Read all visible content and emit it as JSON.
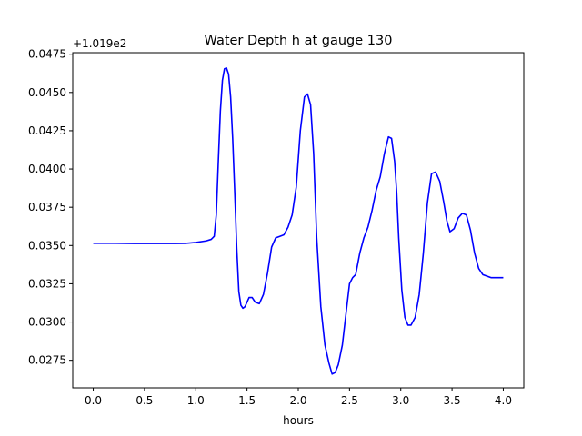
{
  "chart_data": {
    "type": "line",
    "title": "Water Depth h at gauge 130",
    "xlabel": "hours",
    "ylabel": "",
    "y_offset_label": "+1.019e2",
    "xlim": [
      -0.2,
      4.2
    ],
    "ylim": [
      0.0257,
      0.0476
    ],
    "x_ticks": [
      0.0,
      0.5,
      1.0,
      1.5,
      2.0,
      2.5,
      3.0,
      3.5,
      4.0
    ],
    "x_tick_labels": [
      "0.0",
      "0.5",
      "1.0",
      "1.5",
      "2.0",
      "2.5",
      "3.0",
      "3.5",
      "4.0"
    ],
    "y_ticks": [
      0.0275,
      0.03,
      0.0325,
      0.035,
      0.0375,
      0.04,
      0.0425,
      0.045,
      0.0475
    ],
    "y_tick_labels": [
      "0.0275",
      "0.0300",
      "0.0325",
      "0.0350",
      "0.0375",
      "0.0400",
      "0.0425",
      "0.0450",
      "0.0475"
    ],
    "grid": false,
    "line_color": "#0000ff",
    "series": [
      {
        "x": [
          0.0,
          0.2,
          0.4,
          0.6,
          0.8,
          0.9,
          1.0,
          1.1,
          1.15,
          1.18,
          1.2,
          1.22,
          1.24,
          1.26,
          1.28,
          1.3,
          1.32,
          1.34,
          1.36,
          1.38,
          1.4,
          1.42,
          1.44,
          1.46,
          1.48,
          1.5,
          1.52,
          1.55,
          1.58,
          1.62,
          1.66,
          1.7,
          1.74,
          1.78,
          1.82,
          1.86,
          1.9,
          1.94,
          1.98,
          2.02,
          2.06,
          2.09,
          2.12,
          2.15,
          2.18,
          2.22,
          2.26,
          2.3,
          2.33,
          2.36,
          2.39,
          2.43,
          2.47,
          2.5,
          2.53,
          2.56,
          2.6,
          2.64,
          2.68,
          2.72,
          2.76,
          2.8,
          2.84,
          2.88,
          2.91,
          2.94,
          2.96,
          2.98,
          3.01,
          3.04,
          3.07,
          3.1,
          3.14,
          3.18,
          3.22,
          3.26,
          3.3,
          3.34,
          3.38,
          3.42,
          3.45,
          3.48,
          3.52,
          3.56,
          3.6,
          3.64,
          3.68,
          3.72,
          3.76,
          3.8,
          3.84,
          3.88,
          3.92,
          3.96,
          4.0
        ],
        "y": [
          0.03515,
          0.03515,
          0.03513,
          0.03513,
          0.03513,
          0.03514,
          0.0352,
          0.0353,
          0.0354,
          0.0356,
          0.037,
          0.0405,
          0.0438,
          0.0458,
          0.04655,
          0.0466,
          0.0462,
          0.0447,
          0.042,
          0.0385,
          0.0348,
          0.032,
          0.0311,
          0.0309,
          0.031,
          0.0313,
          0.0316,
          0.0316,
          0.0313,
          0.0312,
          0.0318,
          0.0332,
          0.0349,
          0.0355,
          0.0356,
          0.0357,
          0.0362,
          0.037,
          0.0388,
          0.0425,
          0.0447,
          0.0449,
          0.0442,
          0.041,
          0.0355,
          0.031,
          0.0285,
          0.0273,
          0.0266,
          0.0267,
          0.0272,
          0.0285,
          0.0308,
          0.0325,
          0.0329,
          0.0331,
          0.0345,
          0.0355,
          0.0362,
          0.0373,
          0.0386,
          0.0395,
          0.041,
          0.0421,
          0.042,
          0.0405,
          0.0385,
          0.0355,
          0.0321,
          0.0303,
          0.0298,
          0.0298,
          0.0303,
          0.0318,
          0.0345,
          0.0378,
          0.0397,
          0.0398,
          0.0392,
          0.0378,
          0.0366,
          0.0359,
          0.0361,
          0.0368,
          0.0371,
          0.037,
          0.036,
          0.0345,
          0.0335,
          0.0331,
          0.033,
          0.0329,
          0.0329,
          0.0329,
          0.0329
        ]
      }
    ]
  }
}
